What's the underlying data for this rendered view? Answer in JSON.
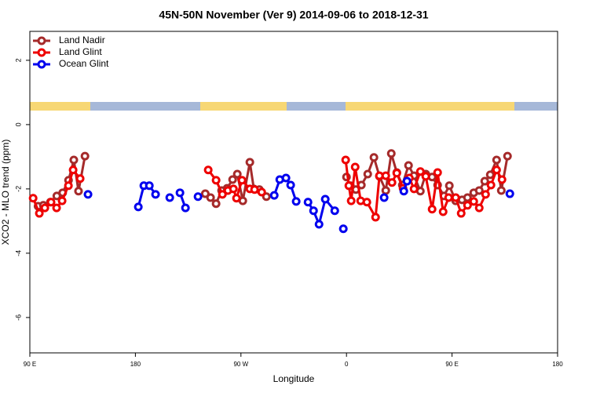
{
  "chart_data": {
    "type": "line",
    "title": "45N-50N November (Ver 9)   2014-09-06 to 2018-12-31",
    "xlabel": "Longitude",
    "ylabel": "XCO2 - MLO trend (ppm)",
    "xlim": [
      -270,
      180
    ],
    "ylim": [
      -7.1,
      2.9
    ],
    "xticks": [
      {
        "value": -270,
        "label": "90 E"
      },
      {
        "value": -180,
        "label": "180"
      },
      {
        "value": -90,
        "label": "90 W"
      },
      0,
      {
        "value": 90,
        "label": "90 E"
      },
      180
    ],
    "yticks": [
      -6,
      -4,
      -2,
      0,
      2
    ],
    "grid": false,
    "legend": "top-left",
    "series": [
      {
        "name": "Land Nadir",
        "color": "#a52a2a",
        "x": [
          -263,
          -258.5,
          -252.5,
          -247,
          -242,
          -237,
          -232.5,
          -228.5,
          -223,
          null,
          -120.4,
          -115.9,
          -111.2,
          -106.5,
          -101.8,
          -97.1,
          -93.1,
          -88.4,
          -82.4,
          -79,
          -74.3,
          -68.3,
          null,
          0,
          3.3,
          8,
          12.7,
          18.1,
          23.4,
          28.1,
          33.5,
          38.2,
          42.9,
          47.6,
          52.9,
          57.6,
          63,
          67.6,
          73,
          77.7,
          83.1,
          87.7,
          93.1,
          98.5,
          103.2,
          108.5,
          113.2,
          117.9,
          122.6,
          128,
          132,
          137.3
        ],
        "values": [
          -2.54,
          -2.51,
          -2.41,
          -2.22,
          -2.12,
          -1.73,
          -1.1,
          -2.07,
          -0.98,
          null,
          -2.15,
          -2.27,
          -2.46,
          -2.05,
          -1.98,
          -1.71,
          -1.54,
          -2.37,
          -1.17,
          -2,
          -2.02,
          -2.24,
          null,
          -1.63,
          -1.9,
          -2.02,
          -1.88,
          -1.54,
          -1.02,
          -1.61,
          -2.05,
          -0.9,
          -1.49,
          -1.88,
          -1.27,
          -1.59,
          -2.07,
          -1.54,
          -1.63,
          -1.88,
          -2.22,
          -1.9,
          -2.37,
          -2.34,
          -2.27,
          -2.12,
          -2.05,
          -1.76,
          -1.56,
          -1.1,
          -2.05,
          -0.98
        ]
      },
      {
        "name": "Land Glint",
        "color": "#ee0000",
        "x": [
          -267.2,
          -261.9,
          -257.2,
          -251.9,
          -247.2,
          -242.5,
          -237.1,
          -233.1,
          -227.1,
          null,
          -117.9,
          -111.2,
          -105.8,
          -101.1,
          -96.4,
          -93.8,
          -89.1,
          -82.4,
          -78.4,
          -72.3,
          null,
          -0.7,
          2,
          4,
          7.4,
          12.1,
          17.4,
          24.8,
          28.1,
          33.5,
          38.8,
          42.9,
          48.2,
          53.6,
          57.6,
          63,
          67.6,
          73,
          77.7,
          82.4,
          87.1,
          93.1,
          97.8,
          103.2,
          108.5,
          113.2,
          118.6,
          123.2,
          128,
          132.6
        ],
        "values": [
          -2.29,
          -2.76,
          -2.59,
          -2.41,
          -2.59,
          -2.37,
          -1.9,
          -1.41,
          -1.68,
          null,
          -1.41,
          -1.73,
          -2.17,
          -2.05,
          -2,
          -2.29,
          -1.73,
          -2,
          -2.02,
          -2.1,
          null,
          -1.1,
          -1.9,
          -2.37,
          -1.32,
          -2.37,
          -2.41,
          -2.88,
          -1.59,
          -1.59,
          -1.8,
          -1.51,
          -1.98,
          -1.66,
          -2,
          -1.46,
          -1.61,
          -2.63,
          -1.49,
          -2.71,
          -2.27,
          -2.27,
          -2.76,
          -2.51,
          -2.39,
          -2.59,
          -2.17,
          -1.88,
          -1.41,
          -1.71
        ]
      },
      {
        "name": "Ocean Glint",
        "color": "#0000ee",
        "x": [
          -220.4,
          null,
          -177.5,
          -172.8,
          -168.1,
          -162.8,
          null,
          -150.7,
          null,
          -142,
          -137.3,
          null,
          -126.6,
          null,
          -61.6,
          -56.9,
          -51.6,
          -47.6,
          -42.9,
          null,
          -32.8,
          -28.1,
          -23.4,
          -18.1,
          -10,
          null,
          -2.7,
          null,
          32.1,
          null,
          48.9,
          51.6,
          null,
          139.3
        ],
        "values": [
          -2.17,
          null,
          -2.56,
          -1.9,
          -1.9,
          -2.17,
          null,
          -2.27,
          null,
          -2.12,
          -2.59,
          null,
          -2.24,
          null,
          -2.2,
          -1.71,
          -1.66,
          -1.88,
          -2.39,
          null,
          -2.41,
          -2.68,
          -3.1,
          -2.32,
          -2.68,
          null,
          -3.24,
          null,
          -2.27,
          null,
          -2.07,
          -1.76,
          null,
          -2.15
        ]
      }
    ]
  }
}
